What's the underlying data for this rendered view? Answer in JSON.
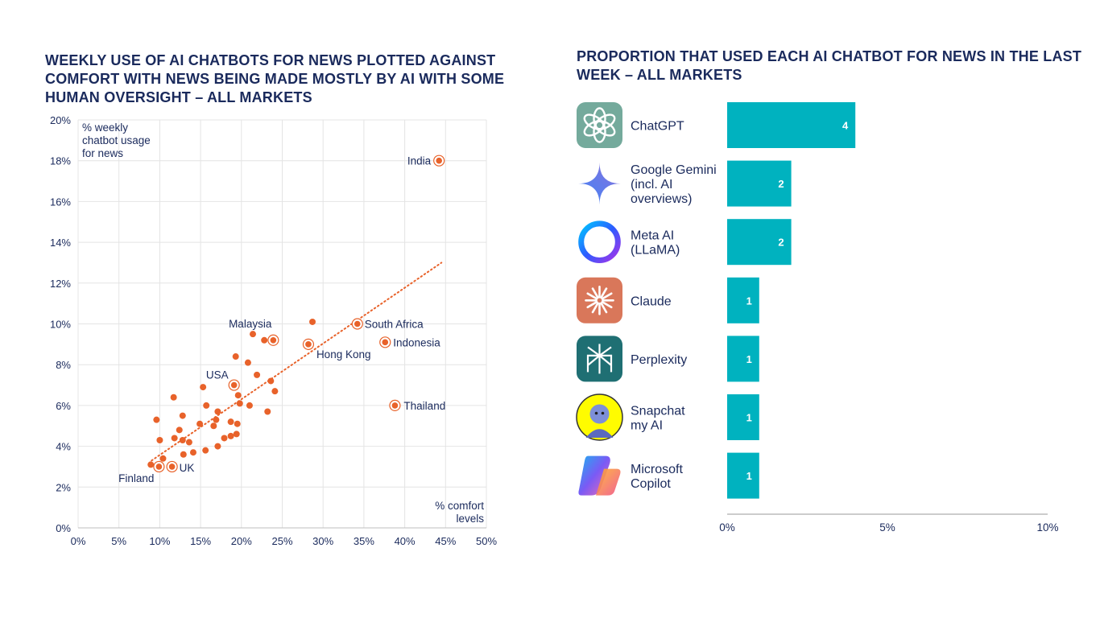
{
  "left_chart": {
    "title": "WEEKLY USE OF AI CHATBOTS FOR NEWS PLOTTED AGAINST COMFORT WITH NEWS BEING MADE MOSTLY BY AI WITH SOME HUMAN OVERSIGHT – ALL MARKETS"
  },
  "right_chart": {
    "title": "PROPORTION THAT USED EACH AI CHATBOT FOR NEWS IN THE LAST WEEK – ALL MARKETS"
  },
  "colors": {
    "title": "#1a2a5c",
    "dot": "#e8622a",
    "bar": "#00b2bf",
    "grid": "#e4e4e4",
    "axis_text": "#1a2a5c"
  },
  "chart_data": [
    {
      "type": "scatter",
      "title": "WEEKLY USE OF AI CHATBOTS FOR NEWS PLOTTED AGAINST COMFORT WITH NEWS BEING MADE MOSTLY BY AI WITH SOME HUMAN OVERSIGHT – ALL MARKETS",
      "ylabel": [
        "% weekly",
        "chatbot usage",
        "for news"
      ],
      "xlabel": [
        "% comfort",
        "levels"
      ],
      "xlim": [
        0,
        50
      ],
      "ylim": [
        0,
        20
      ],
      "x_ticks": [
        "0%",
        "5%",
        "10%",
        "15%",
        "20%",
        "25%",
        "30%",
        "35%",
        "40%",
        "45%",
        "50%"
      ],
      "y_ticks": [
        "0%",
        "2%",
        "4%",
        "6%",
        "8%",
        "10%",
        "12%",
        "14%",
        "16%",
        "18%",
        "20%"
      ],
      "grid": true,
      "trendline": {
        "x": [
          9,
          44.5
        ],
        "y": [
          3.3,
          13.0
        ],
        "style": "dotted"
      },
      "labeled_points": [
        {
          "label": "India",
          "x": 44.2,
          "y": 18.0
        },
        {
          "label": "Malaysia",
          "x": 23.9,
          "y": 9.2
        },
        {
          "label": "South Africa",
          "x": 34.2,
          "y": 10.0
        },
        {
          "label": "Hong Kong",
          "x": 28.2,
          "y": 9.0
        },
        {
          "label": "Indonesia",
          "x": 37.6,
          "y": 9.1
        },
        {
          "label": "USA",
          "x": 19.1,
          "y": 7.0
        },
        {
          "label": "Thailand",
          "x": 38.8,
          "y": 6.0
        },
        {
          "label": "UK",
          "x": 11.5,
          "y": 3.0
        },
        {
          "label": "Finland",
          "x": 9.9,
          "y": 3.0
        }
      ],
      "points": [
        {
          "x": 28.7,
          "y": 10.1
        },
        {
          "x": 21.4,
          "y": 9.5
        },
        {
          "x": 22.8,
          "y": 9.2
        },
        {
          "x": 19.3,
          "y": 8.4
        },
        {
          "x": 20.8,
          "y": 8.1
        },
        {
          "x": 21.9,
          "y": 7.5
        },
        {
          "x": 23.6,
          "y": 7.2
        },
        {
          "x": 24.1,
          "y": 6.7
        },
        {
          "x": 19.6,
          "y": 6.5
        },
        {
          "x": 15.3,
          "y": 6.9
        },
        {
          "x": 11.7,
          "y": 6.4
        },
        {
          "x": 15.7,
          "y": 6.0
        },
        {
          "x": 19.8,
          "y": 6.1
        },
        {
          "x": 21.0,
          "y": 6.0
        },
        {
          "x": 17.1,
          "y": 5.7
        },
        {
          "x": 23.2,
          "y": 5.7
        },
        {
          "x": 9.6,
          "y": 5.3
        },
        {
          "x": 12.8,
          "y": 5.5
        },
        {
          "x": 16.9,
          "y": 5.3
        },
        {
          "x": 18.7,
          "y": 5.2
        },
        {
          "x": 19.5,
          "y": 5.1
        },
        {
          "x": 14.9,
          "y": 5.1
        },
        {
          "x": 16.6,
          "y": 5.0
        },
        {
          "x": 12.4,
          "y": 4.8
        },
        {
          "x": 19.4,
          "y": 4.6
        },
        {
          "x": 18.7,
          "y": 4.5
        },
        {
          "x": 11.8,
          "y": 4.4
        },
        {
          "x": 17.9,
          "y": 4.4
        },
        {
          "x": 10.0,
          "y": 4.3
        },
        {
          "x": 12.8,
          "y": 4.3
        },
        {
          "x": 13.6,
          "y": 4.2
        },
        {
          "x": 17.1,
          "y": 4.0
        },
        {
          "x": 15.6,
          "y": 3.8
        },
        {
          "x": 14.1,
          "y": 3.7
        },
        {
          "x": 12.9,
          "y": 3.6
        },
        {
          "x": 10.4,
          "y": 3.4
        },
        {
          "x": 8.9,
          "y": 3.1
        }
      ]
    },
    {
      "type": "bar",
      "orientation": "horizontal",
      "title": "PROPORTION THAT USED EACH AI CHATBOT FOR NEWS IN THE LAST WEEK – ALL MARKETS",
      "categories": [
        {
          "lines": [
            "ChatGPT"
          ],
          "icon": "chatgpt-icon"
        },
        {
          "lines": [
            "Google Gemini",
            "(incl. AI",
            "overviews)"
          ],
          "icon": "gemini-icon"
        },
        {
          "lines": [
            "Meta AI",
            "(LLaMA)"
          ],
          "icon": "meta-ai-icon"
        },
        {
          "lines": [
            "Claude"
          ],
          "icon": "claude-icon"
        },
        {
          "lines": [
            "Perplexity"
          ],
          "icon": "perplexity-icon"
        },
        {
          "lines": [
            "Snapchat",
            "my AI"
          ],
          "icon": "snapchat-icon"
        },
        {
          "lines": [
            "Microsoft",
            "Copilot"
          ],
          "icon": "copilot-icon"
        }
      ],
      "values": [
        4,
        2,
        2,
        1,
        1,
        1,
        1
      ],
      "data_labels": [
        "4",
        "2",
        "2",
        "1",
        "1",
        "1",
        "1"
      ],
      "xlim": [
        0,
        10
      ],
      "x_ticks": [
        "0%",
        "5%",
        "10%"
      ]
    }
  ]
}
